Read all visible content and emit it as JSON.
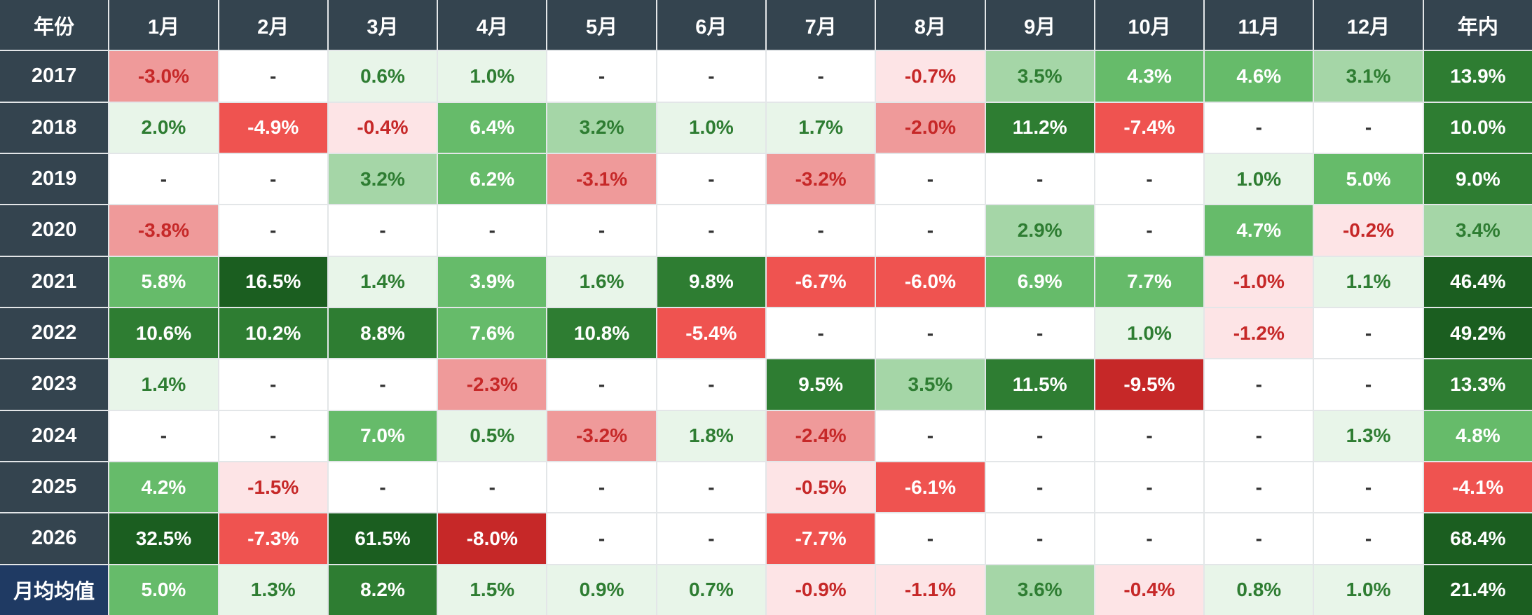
{
  "chart_data": {
    "type": "heatmap",
    "corner_label": "年份",
    "columns": [
      "1月",
      "2月",
      "3月",
      "4月",
      "5月",
      "6月",
      "7月",
      "8月",
      "9月",
      "10月",
      "11月",
      "12月",
      "年内"
    ],
    "rows": [
      {
        "label": "2017",
        "cells": [
          "-3.0%",
          "-",
          "0.6%",
          "1.0%",
          "-",
          "-",
          "-",
          "-0.7%",
          "3.5%",
          "4.3%",
          "4.6%",
          "3.1%",
          "13.9%"
        ]
      },
      {
        "label": "2018",
        "cells": [
          "2.0%",
          "-4.9%",
          "-0.4%",
          "6.4%",
          "3.2%",
          "1.0%",
          "1.7%",
          "-2.0%",
          "11.2%",
          "-7.4%",
          "-",
          "-",
          "10.0%"
        ]
      },
      {
        "label": "2019",
        "cells": [
          "-",
          "-",
          "3.2%",
          "6.2%",
          "-3.1%",
          "-",
          "-3.2%",
          "-",
          "-",
          "-",
          "1.0%",
          "5.0%",
          "9.0%"
        ]
      },
      {
        "label": "2020",
        "cells": [
          "-3.8%",
          "-",
          "-",
          "-",
          "-",
          "-",
          "-",
          "-",
          "2.9%",
          "-",
          "4.7%",
          "-0.2%",
          "3.4%"
        ]
      },
      {
        "label": "2021",
        "cells": [
          "5.8%",
          "16.5%",
          "1.4%",
          "3.9%",
          "1.6%",
          "9.8%",
          "-6.7%",
          "-6.0%",
          "6.9%",
          "7.7%",
          "-1.0%",
          "1.1%",
          "46.4%"
        ]
      },
      {
        "label": "2022",
        "cells": [
          "10.6%",
          "10.2%",
          "8.8%",
          "7.6%",
          "10.8%",
          "-5.4%",
          "-",
          "-",
          "-",
          "1.0%",
          "-1.2%",
          "-",
          "49.2%"
        ]
      },
      {
        "label": "2023",
        "cells": [
          "1.4%",
          "-",
          "-",
          "-2.3%",
          "-",
          "-",
          "9.5%",
          "3.5%",
          "11.5%",
          "-9.5%",
          "-",
          "-",
          "13.3%"
        ]
      },
      {
        "label": "2024",
        "cells": [
          "-",
          "-",
          "7.0%",
          "0.5%",
          "-3.2%",
          "1.8%",
          "-2.4%",
          "-",
          "-",
          "-",
          "-",
          "1.3%",
          "4.8%"
        ]
      },
      {
        "label": "2025",
        "cells": [
          "4.2%",
          "-1.5%",
          "-",
          "-",
          "-",
          "-",
          "-0.5%",
          "-6.1%",
          "-",
          "-",
          "-",
          "-",
          "-4.1%"
        ]
      },
      {
        "label": "2026",
        "cells": [
          "32.5%",
          "-7.3%",
          "61.5%",
          "-8.0%",
          "-",
          "-",
          "-7.7%",
          "-",
          "-",
          "-",
          "-",
          "-",
          "68.4%"
        ]
      },
      {
        "label": "月均均值",
        "cells": [
          "5.0%",
          "1.3%",
          "8.2%",
          "1.5%",
          "0.9%",
          "0.7%",
          "-0.9%",
          "-1.1%",
          "3.6%",
          "-0.4%",
          "0.8%",
          "1.0%",
          "21.4%"
        ]
      }
    ],
    "colors": {
      "header_bg": "#34444f",
      "average_label_bg": "#1f3a63",
      "header_text": "#ffffff",
      "empty_bg": "#ffffff",
      "empty_text": "#333333",
      "pos_text_light": "#2e7d32",
      "neg_text_light": "#c62828",
      "strong_text": "#ffffff",
      "pos_scale": [
        "#e8f5e9",
        "#a5d6a7",
        "#66bb6a",
        "#2e7d32",
        "#1b5e20"
      ],
      "neg_scale": [
        "#fde4e6",
        "#ef9a9a",
        "#ef5350",
        "#c62828"
      ]
    }
  }
}
